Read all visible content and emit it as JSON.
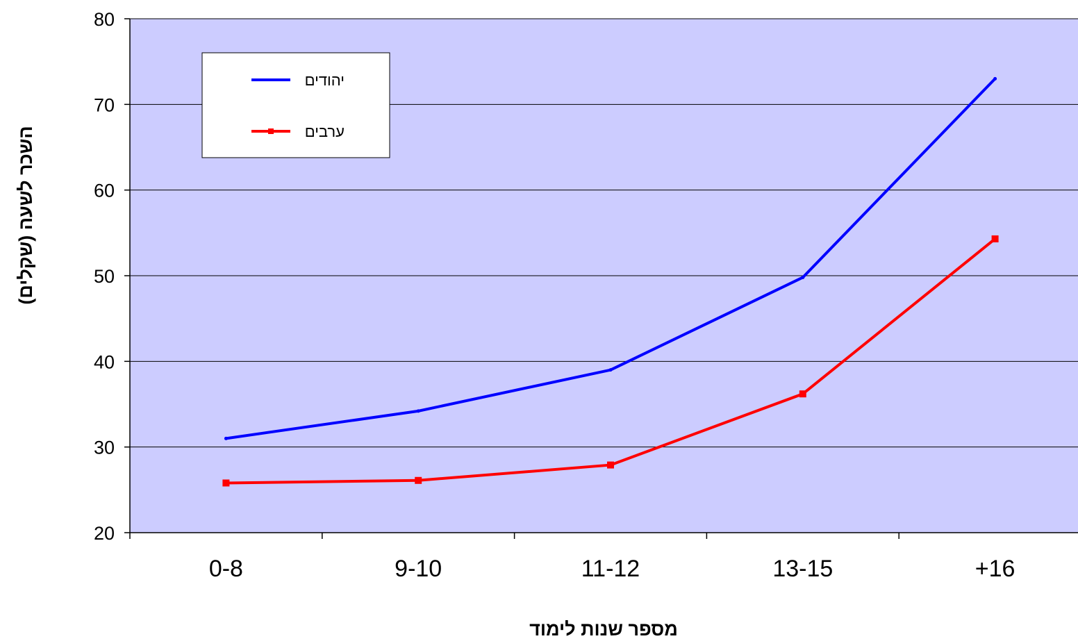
{
  "chart_data": {
    "type": "line",
    "categories": [
      "0-8",
      "9-10",
      "11-12",
      "13-15",
      "+16"
    ],
    "series": [
      {
        "name": "יהודים",
        "color": "#0000ff",
        "marker": "none",
        "values": [
          31.0,
          34.2,
          39.0,
          49.8,
          73.0
        ]
      },
      {
        "name": "ערבים",
        "color": "#ff0000",
        "marker": "square",
        "values": [
          25.8,
          26.1,
          27.9,
          36.2,
          54.3
        ]
      }
    ],
    "xlabel": "מספר שנות לימוד",
    "ylabel": "השכר לשעה (שקלים)",
    "ylim": [
      20,
      80
    ],
    "yticks": [
      20,
      30,
      40,
      50,
      60,
      70,
      80
    ],
    "plot_background": "#ccccff",
    "grid": "horizontal",
    "legend_position": "top-left"
  }
}
